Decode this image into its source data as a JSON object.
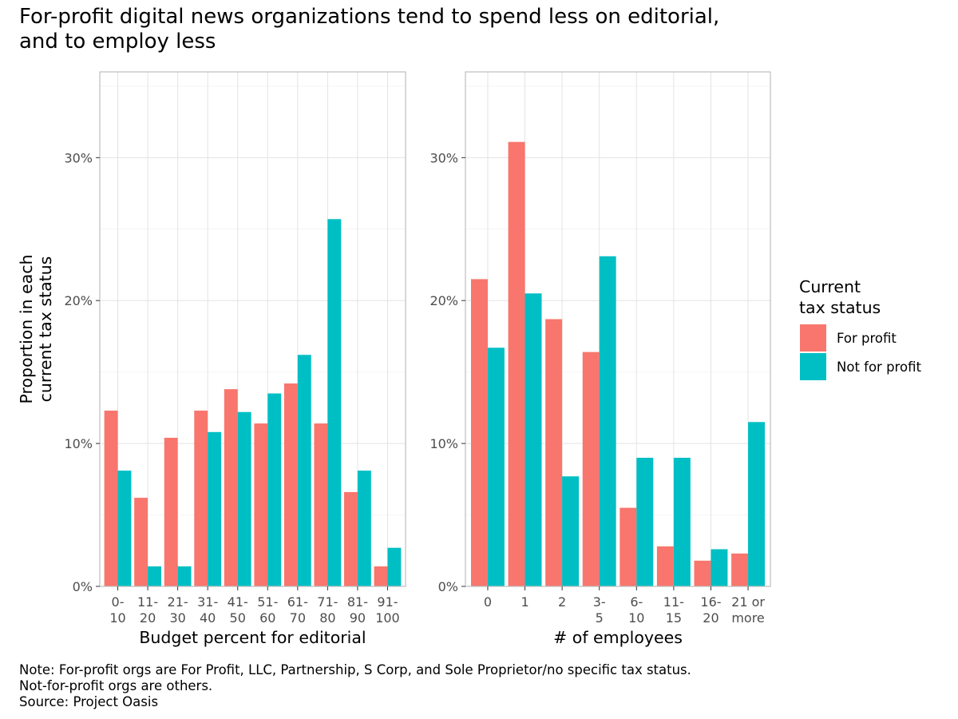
{
  "title_lines": [
    "For-profit digital news organizations tend to spend less on editorial,",
    "and to employ less"
  ],
  "note_lines": [
    "Note: For-profit orgs are For Profit, LLC, Partnership, S Corp, and Sole Proprietor/no specific tax status.",
    "Not-for-profit orgs are others.",
    "Source: Project Oasis"
  ],
  "ylabel_lines": [
    "Proportion in each",
    "current tax status"
  ],
  "legend": {
    "title_lines": [
      "Current",
      "tax status"
    ],
    "entries": [
      {
        "label": "For profit",
        "color": "#F8766D"
      },
      {
        "label": "Not for profit",
        "color": "#00BFC4"
      }
    ]
  },
  "chart_data": [
    {
      "type": "bar",
      "xlabel": "Budget percent for editorial",
      "ylabel": "Proportion in each current tax status",
      "ylim": [
        0,
        0.36
      ],
      "yticks": [
        0,
        0.1,
        0.2,
        0.3
      ],
      "ytick_labels": [
        "0%",
        "10%",
        "20%",
        "30%"
      ],
      "grid": true,
      "categories": [
        [
          "0-",
          "10"
        ],
        [
          "11-",
          "20"
        ],
        [
          "21-",
          "30"
        ],
        [
          "31-",
          "40"
        ],
        [
          "41-",
          "50"
        ],
        [
          "51-",
          "60"
        ],
        [
          "61-",
          "70"
        ],
        [
          "71-",
          "80"
        ],
        [
          "81-",
          "90"
        ],
        [
          "91-",
          "100"
        ]
      ],
      "series": [
        {
          "name": "For profit",
          "color": "#F8766D",
          "values": [
            0.123,
            0.062,
            0.104,
            0.123,
            0.138,
            0.114,
            0.142,
            0.114,
            0.066,
            0.014
          ]
        },
        {
          "name": "Not for profit",
          "color": "#00BFC4",
          "values": [
            0.081,
            0.014,
            0.014,
            0.108,
            0.122,
            0.135,
            0.162,
            0.257,
            0.081,
            0.027
          ]
        }
      ]
    },
    {
      "type": "bar",
      "xlabel": "# of employees",
      "ylabel": "Proportion in each current tax status",
      "ylim": [
        0,
        0.36
      ],
      "yticks": [
        0,
        0.1,
        0.2,
        0.3
      ],
      "ytick_labels": [
        "0%",
        "10%",
        "20%",
        "30%"
      ],
      "grid": true,
      "categories": [
        [
          "0"
        ],
        [
          "1"
        ],
        [
          "2"
        ],
        [
          "3-",
          "5"
        ],
        [
          "6-",
          "10"
        ],
        [
          "11-",
          "15"
        ],
        [
          "16-",
          "20"
        ],
        [
          "21 or",
          "more"
        ]
      ],
      "series": [
        {
          "name": "For profit",
          "color": "#F8766D",
          "values": [
            0.215,
            0.311,
            0.187,
            0.164,
            0.055,
            0.028,
            0.018,
            0.023
          ]
        },
        {
          "name": "Not for profit",
          "color": "#00BFC4",
          "values": [
            0.167,
            0.205,
            0.077,
            0.231,
            0.09,
            0.09,
            0.026,
            0.115
          ]
        }
      ]
    }
  ]
}
